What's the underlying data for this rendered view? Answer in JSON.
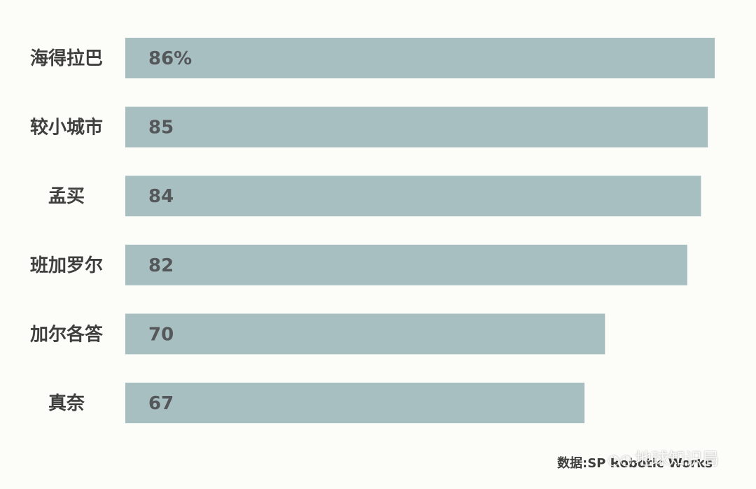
{
  "chart_data": {
    "type": "bar",
    "orientation": "horizontal",
    "categories": [
      "海得拉巴",
      "较小城市",
      "孟买",
      "班加罗尔",
      "加尔各答",
      "真奈"
    ],
    "values": [
      86,
      85,
      84,
      82,
      70,
      67
    ],
    "value_labels": [
      "86%",
      "85",
      "84",
      "82",
      "70",
      "67"
    ],
    "xlim": [
      0,
      86
    ],
    "grid": false,
    "bar_color": "#a8bfc1"
  },
  "source": "数据:SP Robotic Works",
  "watermark": {
    "icon": "wechat-icon",
    "text": "地球知识局"
  }
}
